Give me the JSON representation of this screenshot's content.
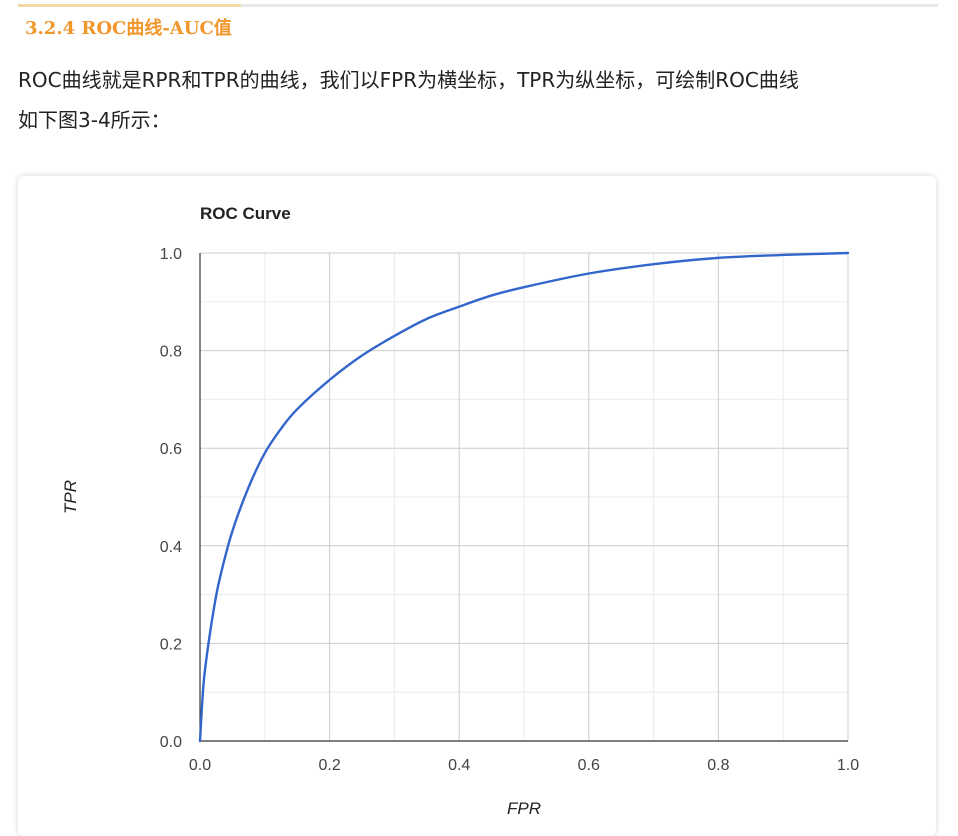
{
  "heading": {
    "number": "3.2.4 ",
    "text": "ROC曲线-AUC值"
  },
  "paragraph": {
    "line1": "ROC曲线就是RPR和TPR的曲线，我们以FPR为横坐标，TPR为纵坐标，可绘制ROC曲线",
    "line2": "如下图3-4所示："
  },
  "colors": {
    "heading": "#f0962a",
    "series": "#3366cc",
    "grid_major": "#cccccc",
    "grid_minor": "#ebebeb",
    "axis": "#333333"
  },
  "chart_data": {
    "type": "line",
    "title": "ROC Curve",
    "xlabel": "FPR",
    "ylabel": "TPR",
    "xlim": [
      0,
      1
    ],
    "ylim": [
      0,
      1
    ],
    "x_ticks": [
      "0.0",
      "0.2",
      "0.4",
      "0.6",
      "0.8",
      "1.0"
    ],
    "y_ticks": [
      "0.0",
      "0.2",
      "0.4",
      "0.6",
      "0.8",
      "1.0"
    ],
    "grid": true,
    "legend": "none",
    "series": [
      {
        "x": [
          0.0,
          0.005,
          0.01,
          0.02,
          0.03,
          0.05,
          0.075,
          0.1,
          0.125,
          0.15,
          0.2,
          0.25,
          0.3,
          0.35,
          0.4,
          0.45,
          0.5,
          0.6,
          0.7,
          0.8,
          0.9,
          1.0
        ],
        "y": [
          0.0,
          0.11,
          0.17,
          0.26,
          0.33,
          0.43,
          0.52,
          0.59,
          0.64,
          0.68,
          0.74,
          0.79,
          0.83,
          0.865,
          0.89,
          0.913,
          0.93,
          0.958,
          0.977,
          0.99,
          0.996,
          1.0
        ]
      }
    ]
  }
}
